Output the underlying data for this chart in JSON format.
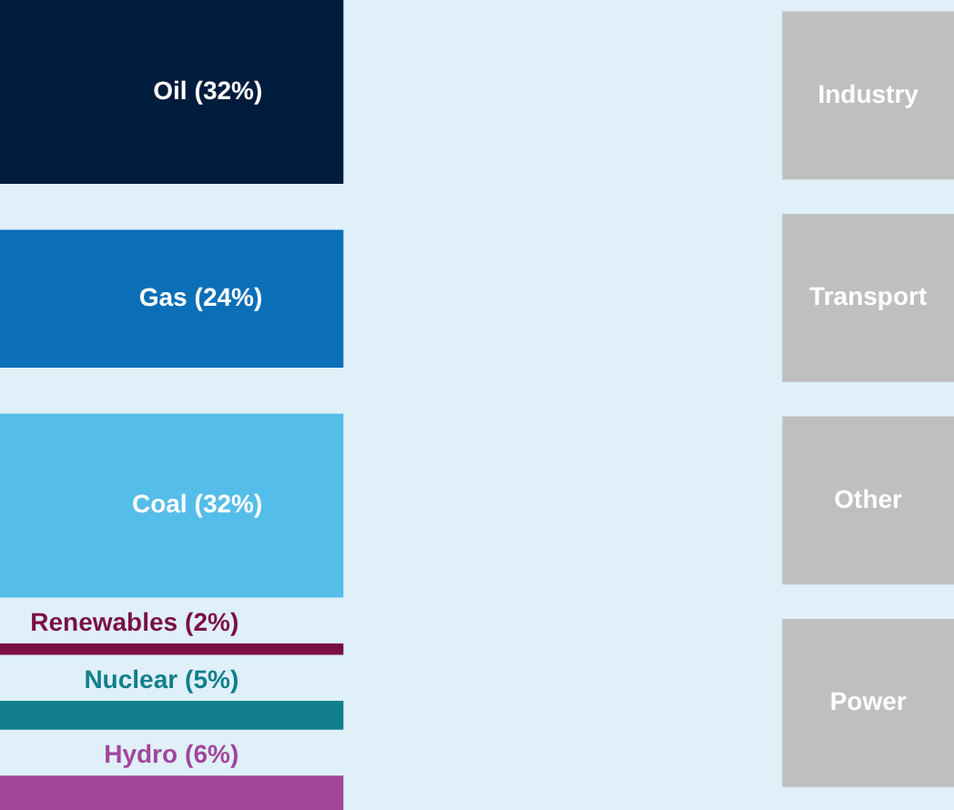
{
  "chart_data": {
    "type": "other",
    "categories": [
      "Oil",
      "Gas",
      "Coal",
      "Renewables",
      "Nuclear",
      "Hydro"
    ],
    "values": [
      32,
      24,
      32,
      2,
      5,
      6
    ],
    "value_labels": [
      "(32%)",
      "(24%)",
      "(32%)",
      "(2%)",
      "(5%)",
      "(6%)"
    ],
    "colors": [
      "#001c3d",
      "#0b6fb8",
      "#55bde9",
      "#7b0f45",
      "#117f8c",
      "#a3459b"
    ],
    "annotations": [
      "Industry",
      "Transport",
      "Other",
      "Power"
    ]
  }
}
